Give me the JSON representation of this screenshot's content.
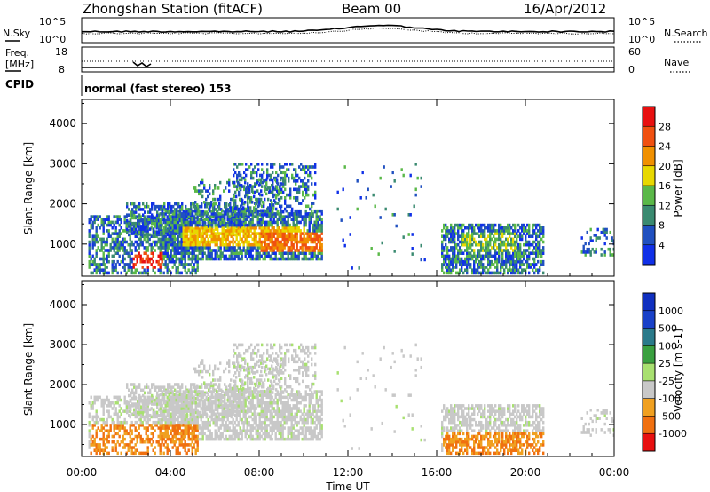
{
  "header": {
    "title": "Zhongshan Station (fitACF)",
    "beam": "Beam 00",
    "date": "16/Apr/2012"
  },
  "noise_panel": {
    "left_label": "N.Sky",
    "left_ticks": [
      "10^5",
      "10^0"
    ],
    "right_ticks": [
      "10^5",
      "10^0"
    ],
    "right_label": "N.Search"
  },
  "freq_panel": {
    "left_label_1": "Freq.",
    "left_label_2": "[MHz]",
    "left_ticks": [
      "18",
      "8"
    ],
    "right_ticks": [
      "60",
      "0"
    ],
    "right_label": "Nave"
  },
  "cpid": {
    "label": "CPID",
    "value": "normal (fast stereo) 153"
  },
  "chart_data": [
    {
      "type": "heatmap",
      "quantity": "Power",
      "ylabel": "Slant Range [km]",
      "xlabel": "Time UT",
      "x_ticks": [
        "00:00",
        "04:00",
        "08:00",
        "12:00",
        "16:00",
        "20:00",
        "00:00"
      ],
      "y_ticks": [
        1000,
        2000,
        3000,
        4000
      ],
      "ylim": [
        200,
        4600
      ],
      "xlim_hours": [
        0,
        24
      ],
      "colorbar_label": "Power [dB]",
      "colorbar_ticks": [
        "4",
        "8",
        "12",
        "16",
        "20",
        "24",
        "28"
      ],
      "colorbar_colors": [
        "#1030e8",
        "#2050c0",
        "#3a8a70",
        "#5ab848",
        "#e8d800",
        "#f09000",
        "#f05010",
        "#e81010"
      ]
    },
    {
      "type": "heatmap",
      "quantity": "Velocity",
      "ylabel": "Slant Range [km]",
      "xlabel": "Time UT",
      "x_ticks": [
        "00:00",
        "04:00",
        "08:00",
        "12:00",
        "16:00",
        "20:00",
        "00:00"
      ],
      "y_ticks": [
        1000,
        2000,
        3000,
        4000
      ],
      "ylim": [
        200,
        4600
      ],
      "xlim_hours": [
        0,
        24
      ],
      "colorbar_label": "Velocity [m s-1]",
      "colorbar_ticks": [
        "1000",
        "500",
        "100",
        "25",
        "-25",
        "-100",
        "-500",
        "-1000"
      ],
      "colorbar_colors": [
        "#1840c8",
        "#2a7a8a",
        "#3aa040",
        "#a8e070",
        "#c8c8c8",
        "#f0a020",
        "#f07010",
        "#e82010"
      ]
    }
  ]
}
